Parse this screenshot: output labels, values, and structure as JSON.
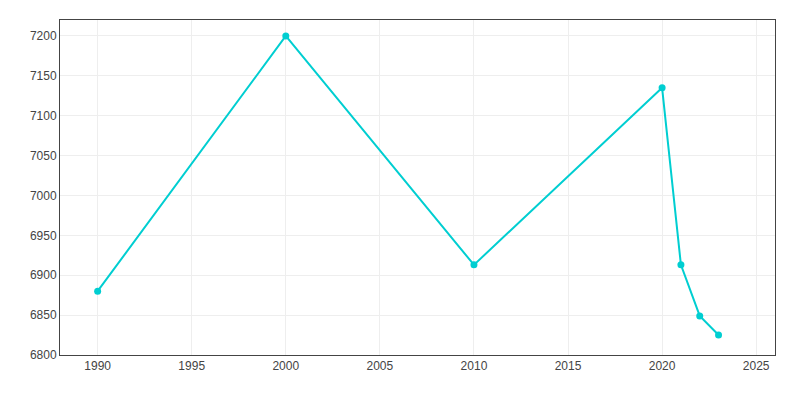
{
  "chart_data": {
    "type": "line",
    "x": [
      1990,
      2000,
      2010,
      2020,
      2021,
      2022,
      2023
    ],
    "values": [
      6880,
      7200,
      6913,
      7135,
      6913,
      6849,
      6825
    ],
    "color": "#00CED1",
    "marker": "circle",
    "xlim": [
      1988,
      2026
    ],
    "ylim": [
      6800,
      7220
    ],
    "xticks": [
      1990,
      1995,
      2000,
      2005,
      2010,
      2015,
      2020,
      2025
    ],
    "yticks": [
      6800,
      6850,
      6900,
      6950,
      7000,
      7050,
      7100,
      7150,
      7200
    ],
    "grid": true
  }
}
